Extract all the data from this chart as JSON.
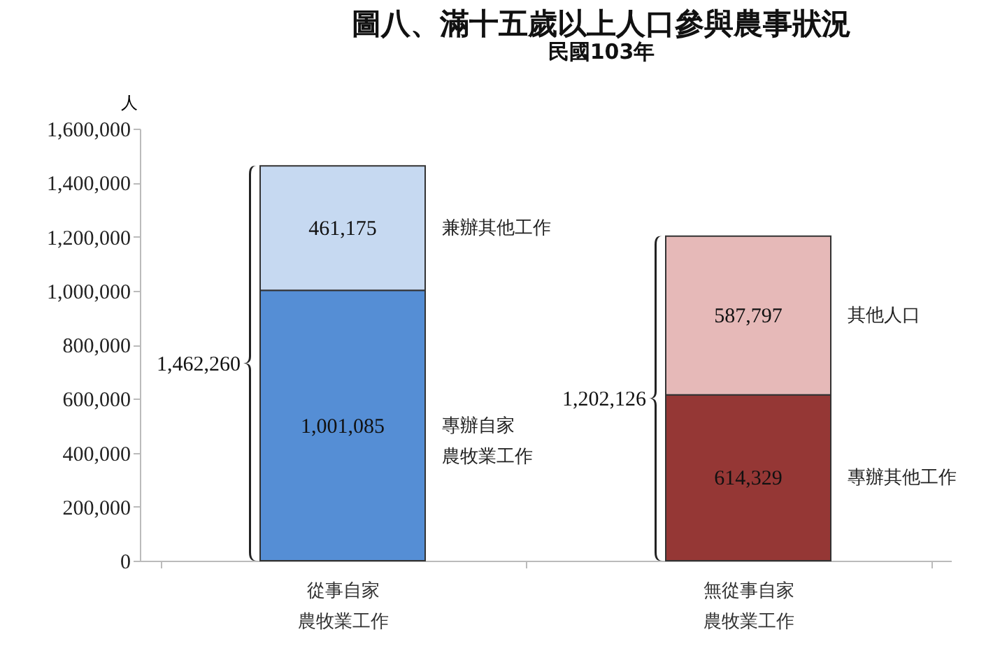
{
  "chart_data": {
    "type": "bar",
    "title": "圖八、滿十五歲以上人口參與農事狀況",
    "subtitle": "民國103年",
    "ylabel": "人",
    "categories": [
      "從事自家農牧業工作",
      "無從事自家農牧業工作"
    ],
    "stacked": true,
    "series": [
      {
        "name": "專辦自家農牧業工作",
        "color": "#558ed5",
        "values": [
          1001085,
          null
        ],
        "value_labels": [
          "1,001,085",
          null
        ]
      },
      {
        "name": "兼辦其他工作",
        "color": "#c6d9f1",
        "values": [
          461175,
          null
        ],
        "value_labels": [
          "461,175",
          null
        ]
      },
      {
        "name": "專辦其他工作",
        "color": "#953735",
        "values": [
          null,
          614329
        ],
        "value_labels": [
          null,
          "614,329"
        ]
      },
      {
        "name": "其他人口",
        "color": "#e6b9b8",
        "values": [
          null,
          587797
        ],
        "value_labels": [
          null,
          "587,797"
        ]
      }
    ],
    "totals": [
      "1,462,260",
      "1,202,126"
    ],
    "ylim": [
      0,
      1600000
    ],
    "yticks": [
      0,
      {
        "value": 200000,
        "label": "200,000"
      },
      {
        "value": 400000,
        "label": "400,000"
      },
      {
        "value": 600000,
        "label": "600,000"
      },
      {
        "value": 800000,
        "label": "800,000"
      },
      {
        "value": 1000000,
        "label": "1,000,000"
      },
      {
        "value": 1200000,
        "label": "1,200,000"
      },
      {
        "value": 1400000,
        "label": "1,400,000"
      },
      {
        "value": 1600000,
        "label": "1,600,000"
      }
    ]
  }
}
